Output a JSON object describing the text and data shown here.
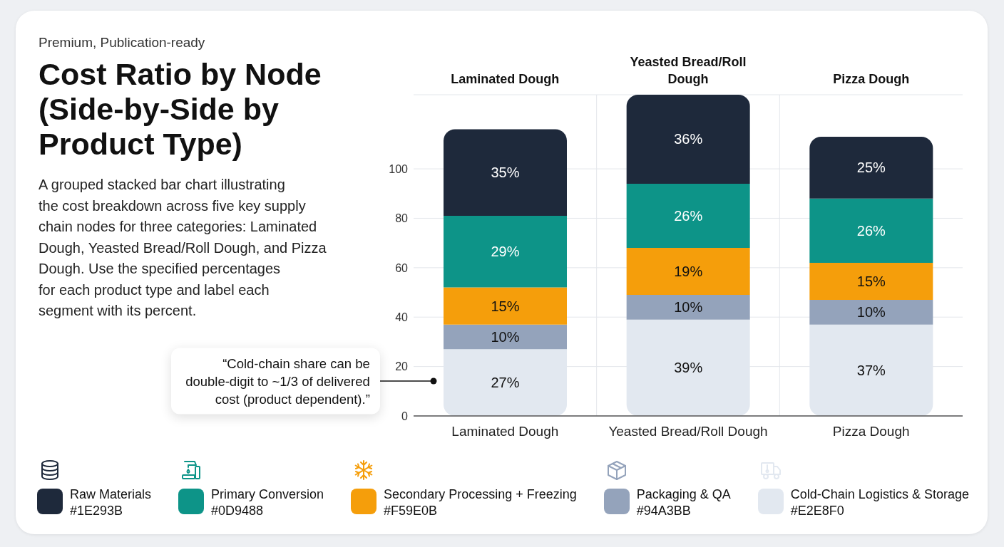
{
  "chart_data": {
    "type": "bar",
    "stacked": true,
    "title": "Cost Ratio by Node (Side-by-Side by Product Type)",
    "subtitle": "A grouped stacked bar chart illustrating\nthe cost breakdown across five key supply\nchain nodes for three categories: Laminated\nDough, Yeasted Bread/Roll Dough, and Pizza\nDough. Use the specified percentages\nfor each product type and label each\nsegment with its percent.",
    "annotations": [
      "Premium, Publication-ready",
      "“Cold-chain share can be double-digit to ~1/3 of delivered cost (product dependent).”"
    ],
    "categories": [
      "Laminated Dough",
      "Yeasted Bread/Roll Dough",
      "Pizza Dough"
    ],
    "series": [
      {
        "name": "Cold-Chain Logistics & Storage\n#E2E8F0",
        "color": "#E2E8F0",
        "values": [
          27,
          39,
          37
        ],
        "value_labels": [
          "27%",
          "39%",
          "37%"
        ]
      },
      {
        "name": "Packaging & QA\n#94A3BB",
        "color": "#94A3BB",
        "values": [
          10,
          10,
          10
        ],
        "value_labels": [
          "10%",
          "10%",
          "10%"
        ]
      },
      {
        "name": "Secondary Processing + Freezing\n#F59E0B",
        "color": "#F59E0B",
        "values": [
          15,
          19,
          15
        ],
        "value_labels": [
          "15%",
          "19%",
          "15%"
        ]
      },
      {
        "name": "Primary Conversion\n#0D9488",
        "color": "#0D9488",
        "values": [
          29,
          26,
          26
        ],
        "value_labels": [
          "29%",
          "26%",
          "26%"
        ]
      },
      {
        "name": "Raw Materials\n#1E293B",
        "color": "#1E293B",
        "values": [
          35,
          36,
          25
        ],
        "value_labels": [
          "35%",
          "36%",
          "25%"
        ]
      }
    ],
    "ylim": [
      0,
      130
    ],
    "yticks": [
      0,
      20,
      40,
      60,
      80,
      100
    ],
    "grid": true,
    "legend": "bottom"
  }
}
